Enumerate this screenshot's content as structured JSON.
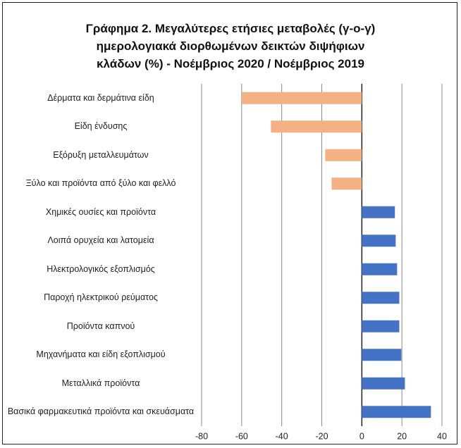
{
  "chart_data": {
    "type": "bar",
    "orientation": "horizontal",
    "title": [
      "Γράφημα 2. Μεγαλύτερες ετήσιες μεταβολές (γ-ο-γ)",
      "ημερολογιακά διορθωμένων δεικτών διψήφιων",
      "κλάδων (%) - Νοέμβριος 2020 / Νοέμβριος 2019"
    ],
    "categories": [
      "Δέρματα και δερμάτινα είδη",
      "Είδη ένδυσης",
      "Εξόρυξη μεταλλευμάτων",
      "Ξύλο και προϊόντα από ξύλο και φελλό",
      "Χημικές ουσίες και προϊόντα",
      "Λοιπά ορυχεία και λατομεία",
      "Ηλεκτρολογικός εξοπλισμός",
      "Παροχή ηλεκτρικού ρεύματος",
      "Προϊόντα καπνού",
      "Μηχανήματα και είδη εξοπλισμού",
      "Μεταλλικά προϊόντα",
      "Βασικά φαρμακευτικά προϊόντα και σκευάσματα"
    ],
    "values": [
      -60,
      -45.4,
      -18.3,
      -15.1,
      16.5,
      16.9,
      17.6,
      18.7,
      18.7,
      19.7,
      21.5,
      34.5
    ],
    "negative_color": "#f4b183",
    "positive_color": "#4472c4",
    "xlim": [
      -80,
      40
    ],
    "xticks": [
      -80,
      -60,
      -40,
      -20,
      0,
      20,
      40
    ],
    "grid": true
  }
}
